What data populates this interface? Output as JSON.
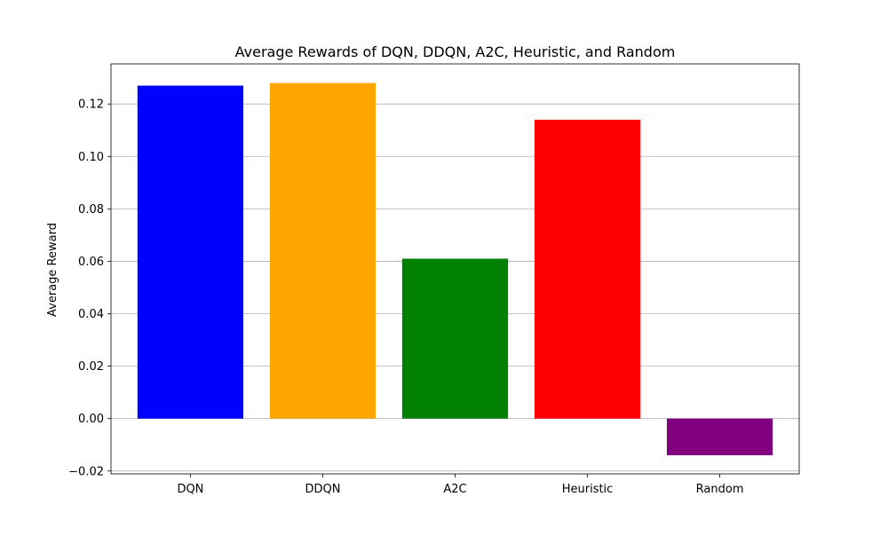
{
  "chart_data": {
    "type": "bar",
    "title": "Average Rewards of DQN, DDQN, A2C, Heuristic, and Random",
    "xlabel": "",
    "ylabel": "Average Reward",
    "categories": [
      "DQN",
      "DDQN",
      "A2C",
      "Heuristic",
      "Random"
    ],
    "values": [
      0.127,
      0.128,
      0.061,
      0.114,
      -0.014
    ],
    "colors": [
      "#0000ff",
      "#ffa500",
      "#008000",
      "#ff0000",
      "#800080"
    ],
    "ylim": [
      -0.0211,
      0.1353
    ],
    "yticks": [
      -0.02,
      0.0,
      0.02,
      0.04,
      0.06,
      0.08,
      0.1,
      0.12
    ],
    "ytick_labels": [
      "−0.02",
      "0.00",
      "0.02",
      "0.04",
      "0.06",
      "0.08",
      "0.10",
      "0.12"
    ],
    "grid": "y-axis only",
    "legend": "none"
  }
}
